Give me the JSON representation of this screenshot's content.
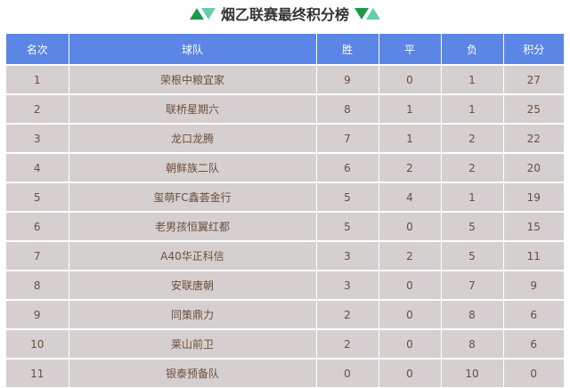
{
  "title": "烟乙联赛最终积分榜",
  "colors": {
    "header": "#5b86e5",
    "row": "#d5d0cf",
    "dark_green": "#1a9a4a",
    "light_green": "#66ccaa"
  },
  "headers": [
    "名次",
    "球队",
    "胜",
    "平",
    "负",
    "积分"
  ],
  "rows": [
    [
      "1",
      "荣根中粮宜家",
      "9",
      "0",
      "1",
      "27"
    ],
    [
      "2",
      "联桥星期六",
      "8",
      "1",
      "1",
      "25"
    ],
    [
      "3",
      "龙口龙腾",
      "7",
      "1",
      "2",
      "22"
    ],
    [
      "4",
      "朝鲜族二队",
      "6",
      "2",
      "2",
      "20"
    ],
    [
      "5",
      "玺萌FC鑫荟金行",
      "5",
      "4",
      "1",
      "19"
    ],
    [
      "6",
      "老男孩恒翼红都",
      "5",
      "0",
      "5",
      "15"
    ],
    [
      "7",
      "A40华正科信",
      "3",
      "2",
      "5",
      "11"
    ],
    [
      "8",
      "安联唐朝",
      "3",
      "0",
      "7",
      "9"
    ],
    [
      "9",
      "同策鼎力",
      "2",
      "0",
      "8",
      "6"
    ],
    [
      "10",
      "莱山前卫",
      "2",
      "0",
      "8",
      "6"
    ],
    [
      "11",
      "银泰预备队",
      "0",
      "0",
      "10",
      "0"
    ]
  ]
}
